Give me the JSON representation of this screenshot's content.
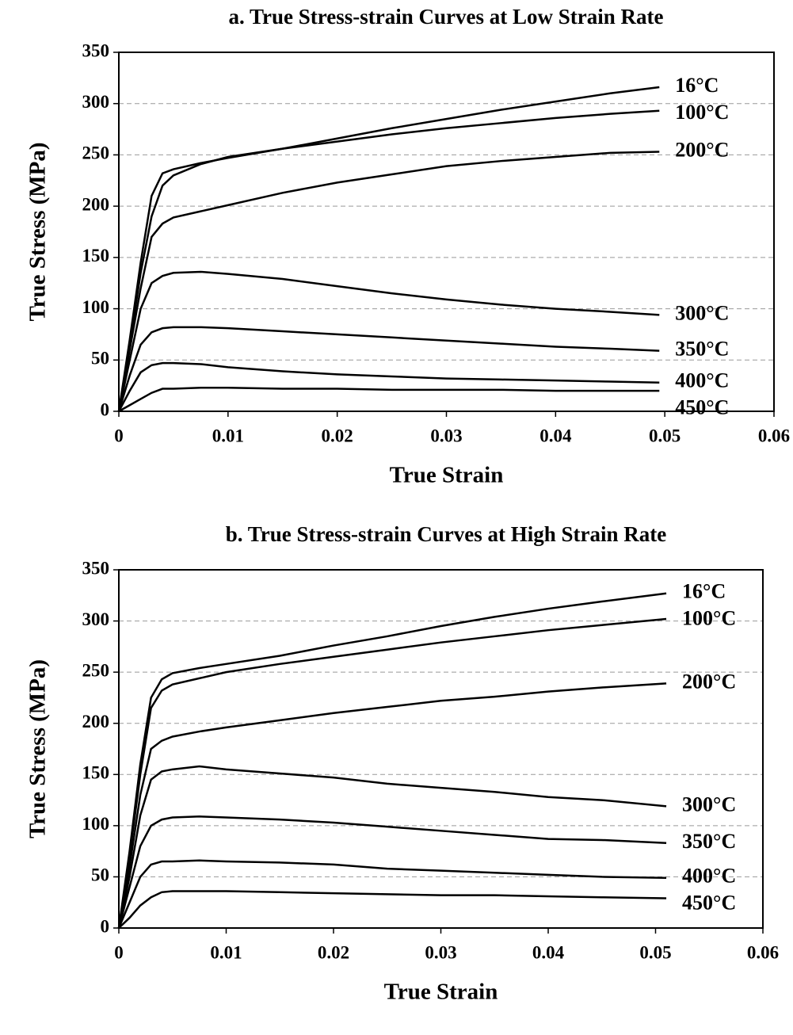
{
  "chart_data": [
    {
      "type": "line",
      "title": "a. True Stress-strain Curves at Low Strain Rate",
      "x_label": "True Strain",
      "y_label": "True Stress (MPa)",
      "x": [
        0,
        0.001,
        0.002,
        0.003,
        0.004,
        0.005,
        0.0075,
        0.01,
        0.015,
        0.02,
        0.025,
        0.03,
        0.035,
        0.04,
        0.045,
        0.0495
      ],
      "series": [
        {
          "name": "16°C",
          "color": "#000000",
          "values": [
            0,
            70,
            145,
            210,
            232,
            236,
            242,
            247,
            256,
            266,
            276,
            285,
            294,
            302,
            310,
            316
          ]
        },
        {
          "name": "100°C",
          "color": "#000000",
          "values": [
            0,
            65,
            135,
            190,
            220,
            230,
            241,
            248,
            256,
            263,
            270,
            276,
            281,
            286,
            290,
            293
          ]
        },
        {
          "name": "200°C",
          "color": "#000000",
          "values": [
            0,
            60,
            120,
            170,
            183,
            189,
            195,
            201,
            213,
            223,
            231,
            239,
            244,
            248,
            252,
            253
          ]
        },
        {
          "name": "300°C",
          "color": "#000000",
          "values": [
            0,
            50,
            100,
            125,
            132,
            135,
            136,
            134,
            129,
            122,
            115,
            109,
            104,
            100,
            97,
            94
          ]
        },
        {
          "name": "350°C",
          "color": "#000000",
          "values": [
            0,
            35,
            65,
            77,
            81,
            82,
            82,
            81,
            78,
            75,
            72,
            69,
            66,
            63,
            61,
            59
          ]
        },
        {
          "name": "400°C",
          "color": "#000000",
          "values": [
            0,
            20,
            38,
            45,
            47,
            47,
            46,
            43,
            39,
            36,
            34,
            32,
            31,
            30,
            29,
            28
          ]
        },
        {
          "name": "450°C",
          "color": "#000000",
          "values": [
            0,
            6,
            12,
            18,
            22,
            22,
            23,
            23,
            22,
            22,
            21,
            21,
            21,
            20,
            20,
            20
          ]
        }
      ],
      "xlim": [
        0,
        0.06
      ],
      "xticks": [
        0,
        0.01,
        0.02,
        0.03,
        0.04,
        0.05,
        0.06
      ],
      "ylim": [
        0,
        350
      ],
      "yticks": [
        0,
        50,
        100,
        150,
        200,
        250,
        300,
        350
      ],
      "grid": true
    },
    {
      "type": "line",
      "title": "b. True Stress-strain Curves at High Strain Rate",
      "x_label": "True Strain",
      "y_label": "True Stress (MPa)",
      "x": [
        0,
        0.001,
        0.002,
        0.003,
        0.004,
        0.005,
        0.0075,
        0.01,
        0.015,
        0.02,
        0.025,
        0.03,
        0.035,
        0.04,
        0.045,
        0.051
      ],
      "series": [
        {
          "name": "16°C",
          "color": "#000000",
          "values": [
            0,
            75,
            160,
            225,
            243,
            249,
            254,
            258,
            266,
            276,
            285,
            295,
            304,
            312,
            319,
            327
          ]
        },
        {
          "name": "100°C",
          "color": "#000000",
          "values": [
            0,
            70,
            150,
            215,
            232,
            238,
            244,
            250,
            258,
            265,
            272,
            279,
            285,
            291,
            296,
            302
          ]
        },
        {
          "name": "200°C",
          "color": "#000000",
          "values": [
            0,
            60,
            130,
            175,
            183,
            187,
            192,
            196,
            203,
            210,
            216,
            222,
            226,
            231,
            235,
            239
          ]
        },
        {
          "name": "300°C",
          "color": "#000000",
          "values": [
            0,
            50,
            110,
            145,
            153,
            155,
            158,
            155,
            151,
            147,
            141,
            137,
            133,
            128,
            125,
            119
          ]
        },
        {
          "name": "350°C",
          "color": "#000000",
          "values": [
            0,
            40,
            80,
            100,
            106,
            108,
            109,
            108,
            106,
            103,
            99,
            95,
            91,
            87,
            86,
            83
          ]
        },
        {
          "name": "400°C",
          "color": "#000000",
          "values": [
            0,
            25,
            50,
            62,
            65,
            65,
            66,
            65,
            64,
            62,
            58,
            56,
            54,
            52,
            50,
            49
          ]
        },
        {
          "name": "450°C",
          "color": "#000000",
          "values": [
            0,
            10,
            22,
            30,
            35,
            36,
            36,
            36,
            35,
            34,
            33,
            32,
            32,
            31,
            30,
            29
          ]
        }
      ],
      "xlim": [
        0,
        0.06
      ],
      "xticks": [
        0,
        0.01,
        0.02,
        0.03,
        0.04,
        0.05,
        0.06
      ],
      "ylim": [
        0,
        350
      ],
      "yticks": [
        0,
        50,
        100,
        150,
        200,
        250,
        300,
        350
      ],
      "grid": true
    }
  ]
}
